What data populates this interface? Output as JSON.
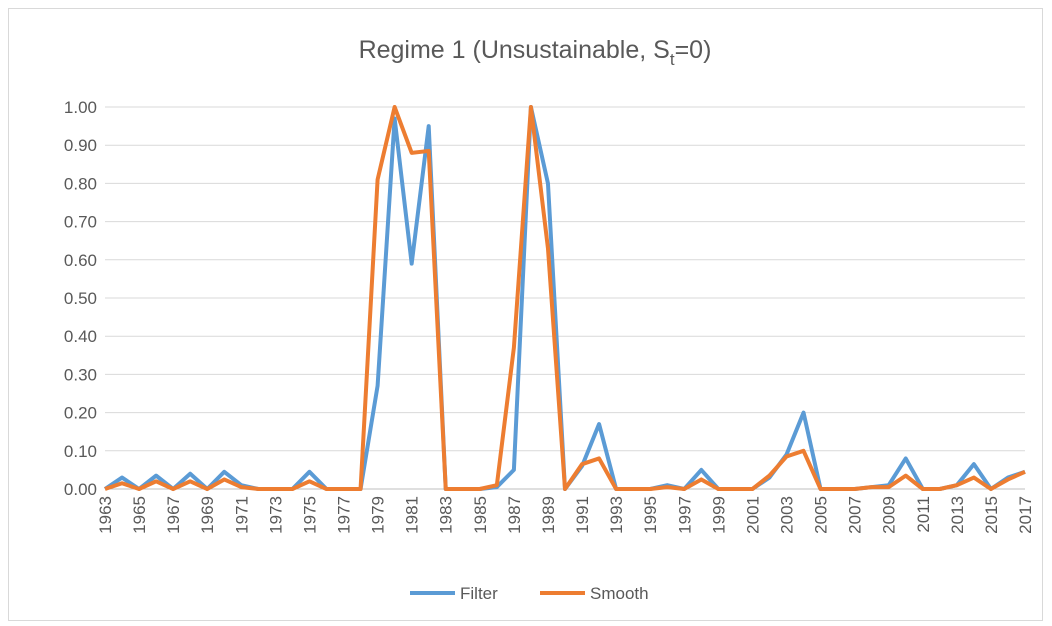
{
  "chart_data": {
    "type": "line",
    "title": {
      "main": "Regime 1 (Unsustainable, S",
      "subscript": "t",
      "end": "=0)"
    },
    "categories": [
      "1963",
      null,
      "1965",
      null,
      "1967",
      null,
      "1969",
      null,
      "1971",
      null,
      "1973",
      null,
      "1975",
      null,
      "1977",
      null,
      "1979",
      null,
      "1981",
      null,
      "1983",
      null,
      "1985",
      null,
      "1987",
      null,
      "1989",
      null,
      "1991",
      null,
      "1993",
      null,
      "1995",
      null,
      "1997",
      null,
      "1999",
      null,
      "2001",
      null,
      "2003",
      null,
      "2005",
      null,
      "2007",
      null,
      "2009",
      null,
      "2011",
      null,
      "2013",
      null,
      "2015",
      null,
      "2017"
    ],
    "series": [
      {
        "name": "Filter",
        "color": "#5b9bd5",
        "values": [
          0,
          0.03,
          0,
          0.035,
          0,
          0.04,
          0,
          0.045,
          0.01,
          0,
          0,
          0,
          0.045,
          0,
          0,
          0,
          0.27,
          0.97,
          0.59,
          0.95,
          0,
          0,
          0,
          0.005,
          0.05,
          1.0,
          0.8,
          0,
          0.06,
          0.17,
          0,
          0,
          0,
          0.01,
          0,
          0.05,
          0,
          0,
          0,
          0.03,
          0.09,
          0.2,
          0,
          0,
          0,
          0.005,
          0.01,
          0.08,
          0,
          0,
          0.01,
          0.065,
          0,
          0.03,
          0.045
        ]
      },
      {
        "name": "Smooth",
        "color": "#ed7d31",
        "values": [
          0,
          0.015,
          0,
          0.02,
          0,
          0.02,
          0,
          0.025,
          0.005,
          0,
          0,
          0,
          0.02,
          0,
          0,
          0,
          0.81,
          1.0,
          0.88,
          0.885,
          0,
          0,
          0,
          0.01,
          0.37,
          1.0,
          0.63,
          0,
          0.065,
          0.08,
          0,
          0,
          0,
          0.005,
          0,
          0.025,
          0,
          0,
          0,
          0.035,
          0.085,
          0.1,
          0,
          0,
          0,
          0.005,
          0.005,
          0.035,
          0,
          0,
          0.01,
          0.03,
          0,
          0.025,
          0.045
        ]
      }
    ],
    "ylim": [
      0,
      1
    ],
    "yticks": [
      {
        "value": 0,
        "label": "0.00"
      },
      {
        "value": 0.1,
        "label": "0.10"
      },
      {
        "value": 0.2,
        "label": "0.20"
      },
      {
        "value": 0.3,
        "label": "0.30"
      },
      {
        "value": 0.4,
        "label": "0.40"
      },
      {
        "value": 0.5,
        "label": "0.50"
      },
      {
        "value": 0.6,
        "label": "0.60"
      },
      {
        "value": 0.7,
        "label": "0.70"
      },
      {
        "value": 0.8,
        "label": "0.80"
      },
      {
        "value": 0.9,
        "label": "0.90"
      },
      {
        "value": 1,
        "label": "1.00"
      }
    ],
    "grid": true,
    "legend": "bottom"
  }
}
